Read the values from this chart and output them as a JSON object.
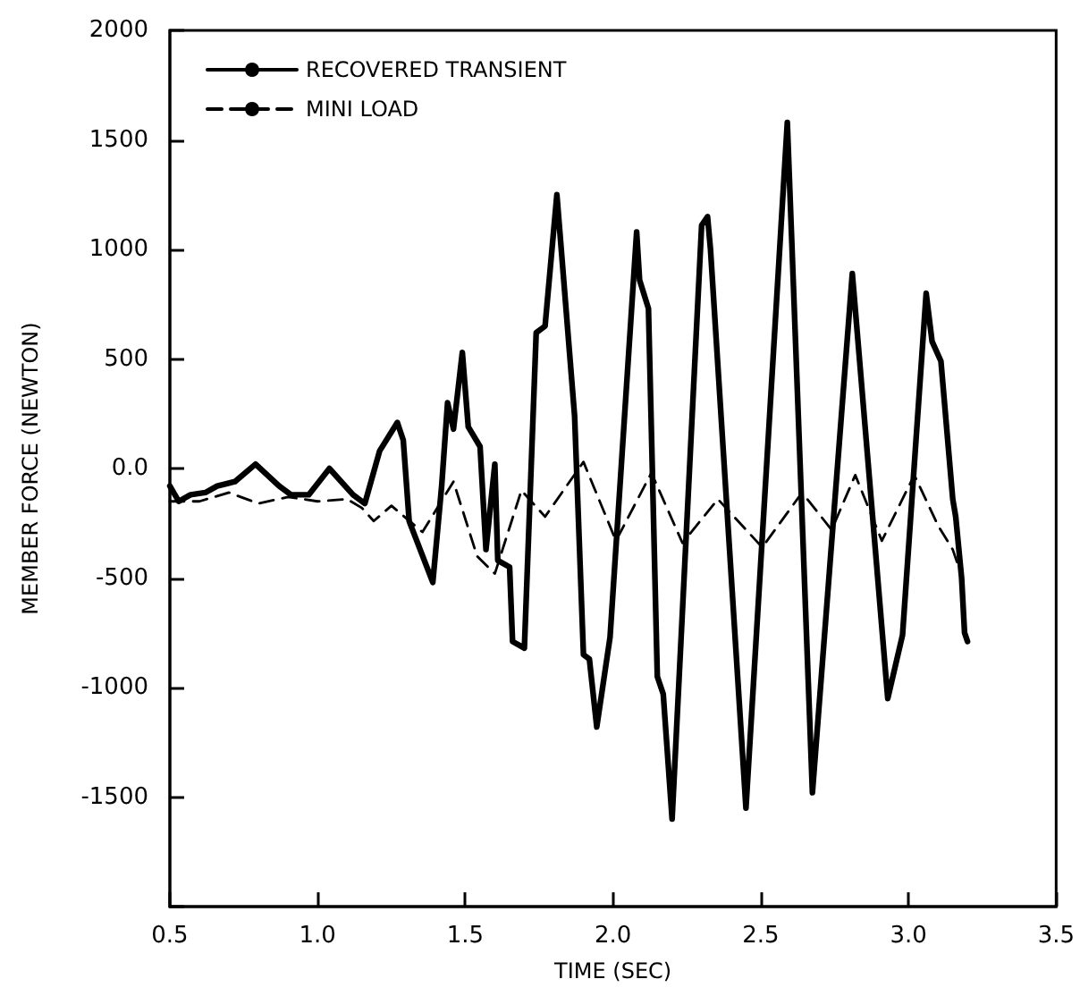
{
  "chart_data": {
    "type": "line",
    "xlabel": "TIME (SEC)",
    "ylabel": "MEMBER FORCE (NEWTON)",
    "xlim": [
      0.5,
      3.5
    ],
    "ylim": [
      -2000,
      2000
    ],
    "xticks": [
      {
        "value": 0.5,
        "label": "0.5"
      },
      {
        "value": 1,
        "label": "1.0"
      },
      {
        "value": 1.5,
        "label": "1.5"
      },
      {
        "value": 2,
        "label": "2.0"
      },
      {
        "value": 2.5,
        "label": "2.5"
      },
      {
        "value": 3,
        "label": "3.0"
      },
      {
        "value": 3.5,
        "label": "3.5"
      }
    ],
    "yticks": [
      {
        "value": -2000,
        "label": null
      },
      -1500,
      -1000,
      -500,
      {
        "value": 0,
        "label": "0.0"
      },
      500,
      1000,
      1500,
      2000
    ],
    "grid": false,
    "legend": "top left",
    "marker": "none",
    "series": [
      {
        "name": "RECOVERED TRANSIENT",
        "color": "#000000",
        "line_style": "solid",
        "x": [
          0.5,
          0.53,
          0.57,
          0.62,
          0.66,
          0.72,
          0.79,
          0.87,
          0.91,
          0.97,
          1.04,
          1.12,
          1.16,
          1.21,
          1.27,
          1.29,
          1.31,
          1.39,
          1.42,
          1.44,
          1.46,
          1.49,
          1.51,
          1.55,
          1.57,
          1.6,
          1.61,
          1.65,
          1.66,
          1.7,
          1.74,
          1.77,
          1.81,
          1.87,
          1.9,
          1.92,
          1.945,
          1.99,
          2.08,
          2.09,
          2.12,
          2.15,
          2.17,
          2.2,
          2.3,
          2.32,
          2.33,
          2.45,
          2.59,
          2.675,
          2.81,
          2.82,
          2.93,
          2.98,
          3.06,
          3.08,
          3.11,
          3.15,
          3.16,
          3.18,
          3.19,
          3.2
        ],
        "values": [
          -80,
          -150,
          -120,
          -110,
          -80,
          -60,
          20,
          -80,
          -120,
          -120,
          0,
          -120,
          -160,
          80,
          210,
          130,
          -240,
          -520,
          -80,
          300,
          180,
          530,
          190,
          100,
          -370,
          20,
          -420,
          -450,
          -790,
          -820,
          620,
          650,
          1250,
          240,
          -850,
          -870,
          -1180,
          -770,
          1080,
          860,
          730,
          -950,
          -1030,
          -1600,
          1110,
          1150,
          1000,
          -1550,
          1580,
          -1480,
          890,
          730,
          -1050,
          -760,
          800,
          580,
          490,
          -140,
          -220,
          -500,
          -750,
          -790
        ]
      },
      {
        "name": "MINI LOAD",
        "color": "#000000",
        "line_style": "dashed",
        "x": [
          0.5,
          0.6,
          0.7,
          0.8,
          0.9,
          1.0,
          1.1,
          1.15,
          1.19,
          1.25,
          1.355,
          1.46,
          1.54,
          1.6,
          1.69,
          1.77,
          1.9,
          2.01,
          2.13,
          2.235,
          2.355,
          2.505,
          2.64,
          2.74,
          2.82,
          2.91,
          3.02,
          3.1,
          3.15,
          3.17
        ],
        "values": [
          -150,
          -150,
          -110,
          -160,
          -130,
          -150,
          -140,
          -180,
          -240,
          -170,
          -290,
          -60,
          -400,
          -480,
          -100,
          -220,
          30,
          -330,
          -20,
          -340,
          -140,
          -360,
          -110,
          -280,
          -30,
          -330,
          -30,
          -260,
          -370,
          -450
        ]
      }
    ]
  }
}
